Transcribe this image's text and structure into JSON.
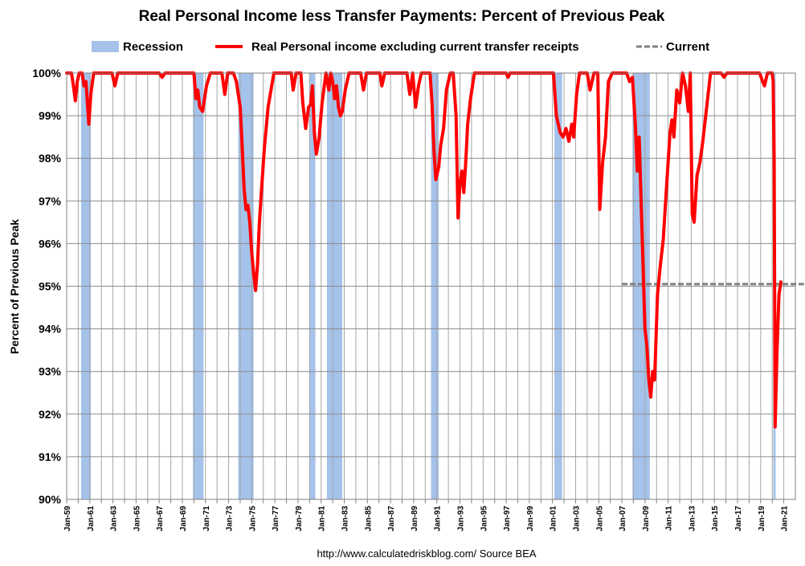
{
  "chart_data": {
    "type": "line",
    "title": "Real Personal Income less Transfer Payments: Percent of Previous Peak",
    "ylabel": "Percent of Previous Peak",
    "xlabel": "",
    "ylim": [
      90,
      100
    ],
    "yticks": [
      "90%",
      "91%",
      "92%",
      "93%",
      "94%",
      "95%",
      "96%",
      "97%",
      "98%",
      "99%",
      "100%"
    ],
    "xlim": [
      "1959-01",
      "2021-12"
    ],
    "xtick_labels": [
      "Jan-59",
      "Jan-61",
      "Jan-63",
      "Jan-65",
      "Jan-67",
      "Jan-69",
      "Jan-71",
      "Jan-73",
      "Jan-75",
      "Jan-77",
      "Jan-79",
      "Jan-81",
      "Jan-83",
      "Jan-85",
      "Jan-87",
      "Jan-89",
      "Jan-91",
      "Jan-93",
      "Jan-95",
      "Jan-97",
      "Jan-99",
      "Jan-01",
      "Jan-03",
      "Jan-05",
      "Jan-07",
      "Jan-09",
      "Jan-11",
      "Jan-13",
      "Jan-15",
      "Jan-17",
      "Jan-19",
      "Jan-21"
    ],
    "grid": true,
    "legend_position": "top",
    "legend": [
      {
        "label": "Recession",
        "kind": "band",
        "color": "#a4c2ea"
      },
      {
        "label": "Real Personal income excluding current transfer receipts",
        "kind": "line",
        "color": "#ff0000"
      },
      {
        "label": "Current",
        "kind": "dashed",
        "color": "#808080"
      }
    ],
    "recessions": [
      [
        "1960-04",
        "1961-02"
      ],
      [
        "1969-12",
        "1970-11"
      ],
      [
        "1973-11",
        "1975-03"
      ],
      [
        "1980-01",
        "1980-07"
      ],
      [
        "1981-07",
        "1982-11"
      ],
      [
        "1990-07",
        "1991-03"
      ],
      [
        "2001-03",
        "2001-11"
      ],
      [
        "2007-12",
        "2009-06"
      ],
      [
        "2020-02",
        "2020-04"
      ]
    ],
    "current_line": {
      "value": 95.05,
      "from": "2007-01",
      "to": "2021-12"
    },
    "series": [
      {
        "name": "Real Personal income excluding current transfer receipts",
        "color": "#ff0000",
        "points": [
          [
            "1959-01",
            100
          ],
          [
            "1959-06",
            100
          ],
          [
            "1959-08",
            99.7
          ],
          [
            "1959-10",
            99.35
          ],
          [
            "1959-12",
            99.8
          ],
          [
            "1960-02",
            100
          ],
          [
            "1960-05",
            100
          ],
          [
            "1960-07",
            99.7
          ],
          [
            "1960-09",
            99.8
          ],
          [
            "1960-12",
            98.8
          ],
          [
            "1961-02",
            99.5
          ],
          [
            "1961-05",
            100
          ],
          [
            "1962-12",
            100
          ],
          [
            "1963-03",
            99.7
          ],
          [
            "1963-06",
            100
          ],
          [
            "1967-01",
            100
          ],
          [
            "1967-04",
            99.9
          ],
          [
            "1967-07",
            100
          ],
          [
            "1970-01",
            100
          ],
          [
            "1970-03",
            99.4
          ],
          [
            "1970-05",
            99.6
          ],
          [
            "1970-07",
            99.2
          ],
          [
            "1970-10",
            99.1
          ],
          [
            "1971-02",
            99.7
          ],
          [
            "1971-06",
            100
          ],
          [
            "1972-06",
            100
          ],
          [
            "1972-09",
            99.5
          ],
          [
            "1972-12",
            100
          ],
          [
            "1973-06",
            100
          ],
          [
            "1973-09",
            99.8
          ],
          [
            "1974-01",
            99.2
          ],
          [
            "1974-03",
            98.3
          ],
          [
            "1974-05",
            97.3
          ],
          [
            "1974-07",
            96.8
          ],
          [
            "1974-09",
            96.9
          ],
          [
            "1974-11",
            96.5
          ],
          [
            "1975-01",
            95.8
          ],
          [
            "1975-03",
            95.3
          ],
          [
            "1975-05",
            94.9
          ],
          [
            "1975-07",
            95.5
          ],
          [
            "1975-09",
            96.5
          ],
          [
            "1975-11",
            97.2
          ],
          [
            "1976-02",
            98.2
          ],
          [
            "1976-06",
            99.2
          ],
          [
            "1976-12",
            100
          ],
          [
            "1978-06",
            100
          ],
          [
            "1978-08",
            99.6
          ],
          [
            "1978-11",
            100
          ],
          [
            "1979-04",
            100
          ],
          [
            "1979-06",
            99.3
          ],
          [
            "1979-09",
            98.7
          ],
          [
            "1979-12",
            99.2
          ],
          [
            "1980-02",
            99.25
          ],
          [
            "1980-04",
            99.7
          ],
          [
            "1980-06",
            98.6
          ],
          [
            "1980-08",
            98.1
          ],
          [
            "1980-11",
            98.5
          ],
          [
            "1981-02",
            99.3
          ],
          [
            "1981-06",
            100
          ],
          [
            "1981-09",
            99.6
          ],
          [
            "1981-11",
            100
          ],
          [
            "1982-01",
            99.8
          ],
          [
            "1982-03",
            99.4
          ],
          [
            "1982-05",
            99.7
          ],
          [
            "1982-07",
            99.2
          ],
          [
            "1982-09",
            99.0
          ],
          [
            "1982-11",
            99.1
          ],
          [
            "1983-02",
            99.6
          ],
          [
            "1983-06",
            100
          ],
          [
            "1984-06",
            100
          ],
          [
            "1984-09",
            99.6
          ],
          [
            "1984-12",
            100
          ],
          [
            "1986-02",
            100
          ],
          [
            "1986-04",
            99.7
          ],
          [
            "1986-07",
            100
          ],
          [
            "1988-06",
            100
          ],
          [
            "1988-09",
            99.5
          ],
          [
            "1988-12",
            100
          ],
          [
            "1989-03",
            99.2
          ],
          [
            "1989-06",
            99.7
          ],
          [
            "1989-09",
            100
          ],
          [
            "1990-06",
            100
          ],
          [
            "1990-08",
            99.3
          ],
          [
            "1990-10",
            98.2
          ],
          [
            "1990-12",
            97.5
          ],
          [
            "1991-03",
            97.8
          ],
          [
            "1991-05",
            98.3
          ],
          [
            "1991-08",
            98.7
          ],
          [
            "1991-11",
            99.6
          ],
          [
            "1992-03",
            100
          ],
          [
            "1992-06",
            100
          ],
          [
            "1992-09",
            99.0
          ],
          [
            "1992-11",
            96.6
          ],
          [
            "1993-01",
            97.4
          ],
          [
            "1993-03",
            97.7
          ],
          [
            "1993-05",
            97.2
          ],
          [
            "1993-07",
            97.9
          ],
          [
            "1993-09",
            98.8
          ],
          [
            "1993-12",
            99.4
          ],
          [
            "1994-04",
            100
          ],
          [
            "1997-01",
            100
          ],
          [
            "1997-03",
            99.9
          ],
          [
            "1997-05",
            100
          ],
          [
            "2001-02",
            100
          ],
          [
            "2001-05",
            99.0
          ],
          [
            "2001-09",
            98.6
          ],
          [
            "2001-12",
            98.5
          ],
          [
            "2002-03",
            98.7
          ],
          [
            "2002-06",
            98.4
          ],
          [
            "2002-09",
            98.8
          ],
          [
            "2002-11",
            98.5
          ],
          [
            "2003-02",
            99.5
          ],
          [
            "2003-05",
            100
          ],
          [
            "2004-01",
            100
          ],
          [
            "2004-04",
            99.6
          ],
          [
            "2004-08",
            100
          ],
          [
            "2004-12",
            100
          ],
          [
            "2005-02",
            96.8
          ],
          [
            "2005-05",
            97.9
          ],
          [
            "2005-08",
            98.5
          ],
          [
            "2005-11",
            99.8
          ],
          [
            "2006-03",
            100
          ],
          [
            "2007-06",
            100
          ],
          [
            "2007-09",
            99.8
          ],
          [
            "2007-12",
            99.9
          ],
          [
            "2008-03",
            98.8
          ],
          [
            "2008-05",
            97.7
          ],
          [
            "2008-07",
            98.5
          ],
          [
            "2008-09",
            97.0
          ],
          [
            "2008-11",
            95.5
          ],
          [
            "2009-01",
            94.0
          ],
          [
            "2009-03",
            93.6
          ],
          [
            "2009-05",
            92.8
          ],
          [
            "2009-07",
            92.4
          ],
          [
            "2009-09",
            93.0
          ],
          [
            "2009-11",
            92.8
          ],
          [
            "2010-02",
            94.8
          ],
          [
            "2010-05",
            95.5
          ],
          [
            "2010-08",
            96.1
          ],
          [
            "2010-11",
            97.2
          ],
          [
            "2011-03",
            98.6
          ],
          [
            "2011-05",
            98.9
          ],
          [
            "2011-07",
            98.5
          ],
          [
            "2011-10",
            99.6
          ],
          [
            "2012-01",
            99.3
          ],
          [
            "2012-04",
            100
          ],
          [
            "2012-07",
            99.7
          ],
          [
            "2012-10",
            99.1
          ],
          [
            "2012-12",
            100
          ],
          [
            "2013-02",
            96.7
          ],
          [
            "2013-04",
            96.5
          ],
          [
            "2013-07",
            97.6
          ],
          [
            "2013-10",
            97.9
          ],
          [
            "2014-01",
            98.4
          ],
          [
            "2014-04",
            99.0
          ],
          [
            "2014-09",
            100
          ],
          [
            "2015-08",
            100
          ],
          [
            "2015-11",
            99.9
          ],
          [
            "2016-02",
            100
          ],
          [
            "2018-12",
            100
          ],
          [
            "2019-03",
            99.8
          ],
          [
            "2019-05",
            99.7
          ],
          [
            "2019-08",
            100
          ],
          [
            "2020-01",
            100
          ],
          [
            "2020-02",
            99.8
          ],
          [
            "2020-03",
            98.0
          ],
          [
            "2020-04",
            91.7
          ],
          [
            "2020-06",
            93.5
          ],
          [
            "2020-08",
            94.8
          ],
          [
            "2020-10",
            95.1
          ]
        ]
      }
    ],
    "source": "http://www.calculatedriskblog.com/    Source BEA"
  }
}
